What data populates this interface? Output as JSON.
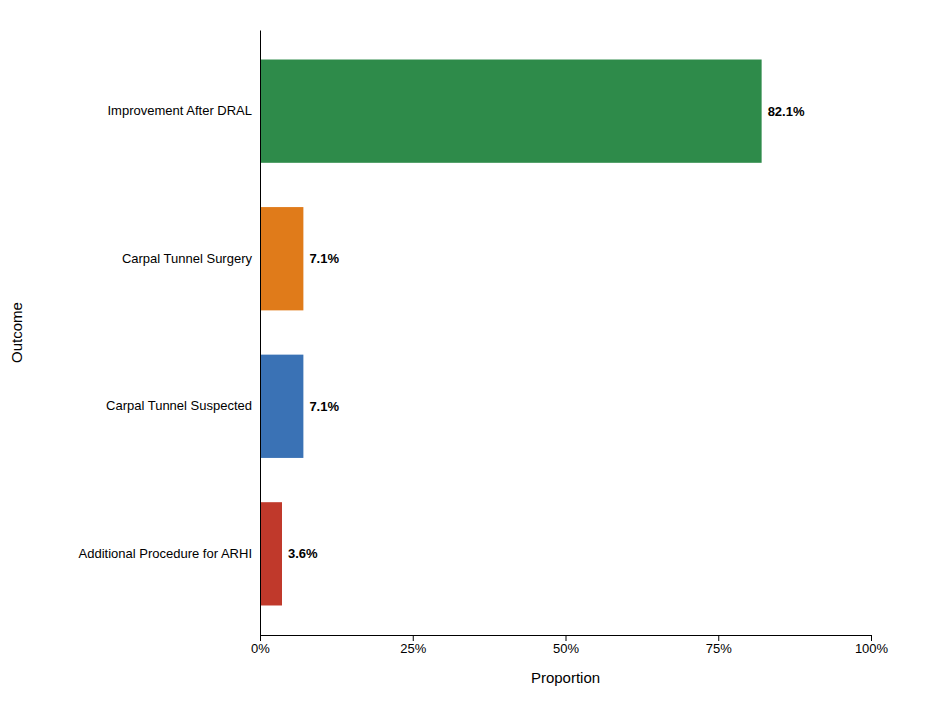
{
  "chart_data": {
    "type": "bar",
    "orientation": "horizontal",
    "categories": [
      "Improvement After DRAL",
      "Carpal Tunnel Surgery",
      "Carpal Tunnel Suspected",
      "Additional Procedure for ARHI"
    ],
    "values": [
      82.1,
      7.1,
      7.1,
      3.6
    ],
    "value_labels": [
      "82.1%",
      "7.1%",
      "7.1%",
      "3.6%"
    ],
    "data_labels": true,
    "colors": [
      "#2e8b4a",
      "#e07b1a",
      "#3a72b5",
      "#c0392b"
    ],
    "xlabel": "Proportion",
    "ylabel": "Outcome",
    "xlim": [
      0,
      100
    ],
    "xticks": [
      {
        "value": 0,
        "label": "0%"
      },
      {
        "value": 25,
        "label": "25%"
      },
      {
        "value": 50,
        "label": "50%"
      },
      {
        "value": 75,
        "label": "75%"
      },
      {
        "value": 100,
        "label": "100%"
      }
    ],
    "grid": false
  }
}
